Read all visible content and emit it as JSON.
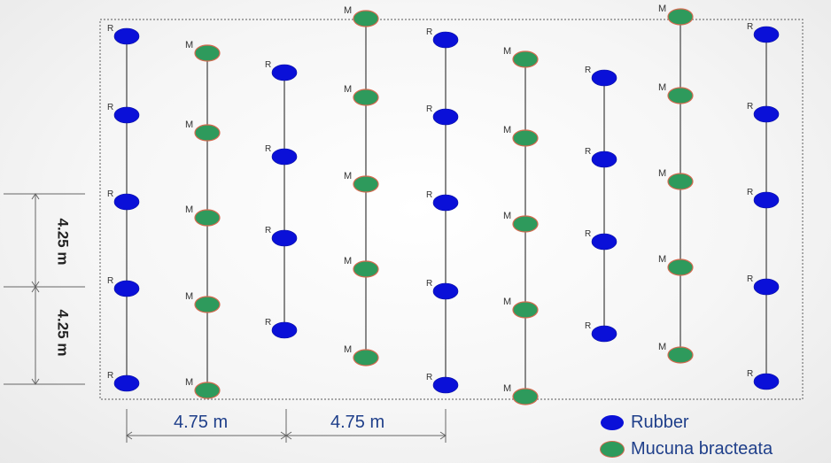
{
  "plant_marker_labels": {
    "rubber": "R",
    "mucuna": "M"
  },
  "dimensions": {
    "horizontal_spacing_1": "4.75 m",
    "horizontal_spacing_2": "4.75 m",
    "vertical_spacing_1": "4.25 m",
    "vertical_spacing_2": "4.25 m"
  },
  "legend": [
    {
      "label": "Rubber",
      "color": "#0a10d8",
      "text_color": "#1f3f8a"
    },
    {
      "label": "Mucuna bracteata",
      "color": "#2e9a5c",
      "text_color": "#1f3f8a"
    }
  ],
  "colors": {
    "rubber": "#0a10d8",
    "mucuna": "#2e9a5c",
    "mucuna_outline": "#d46a50",
    "stem": "#888888"
  }
}
